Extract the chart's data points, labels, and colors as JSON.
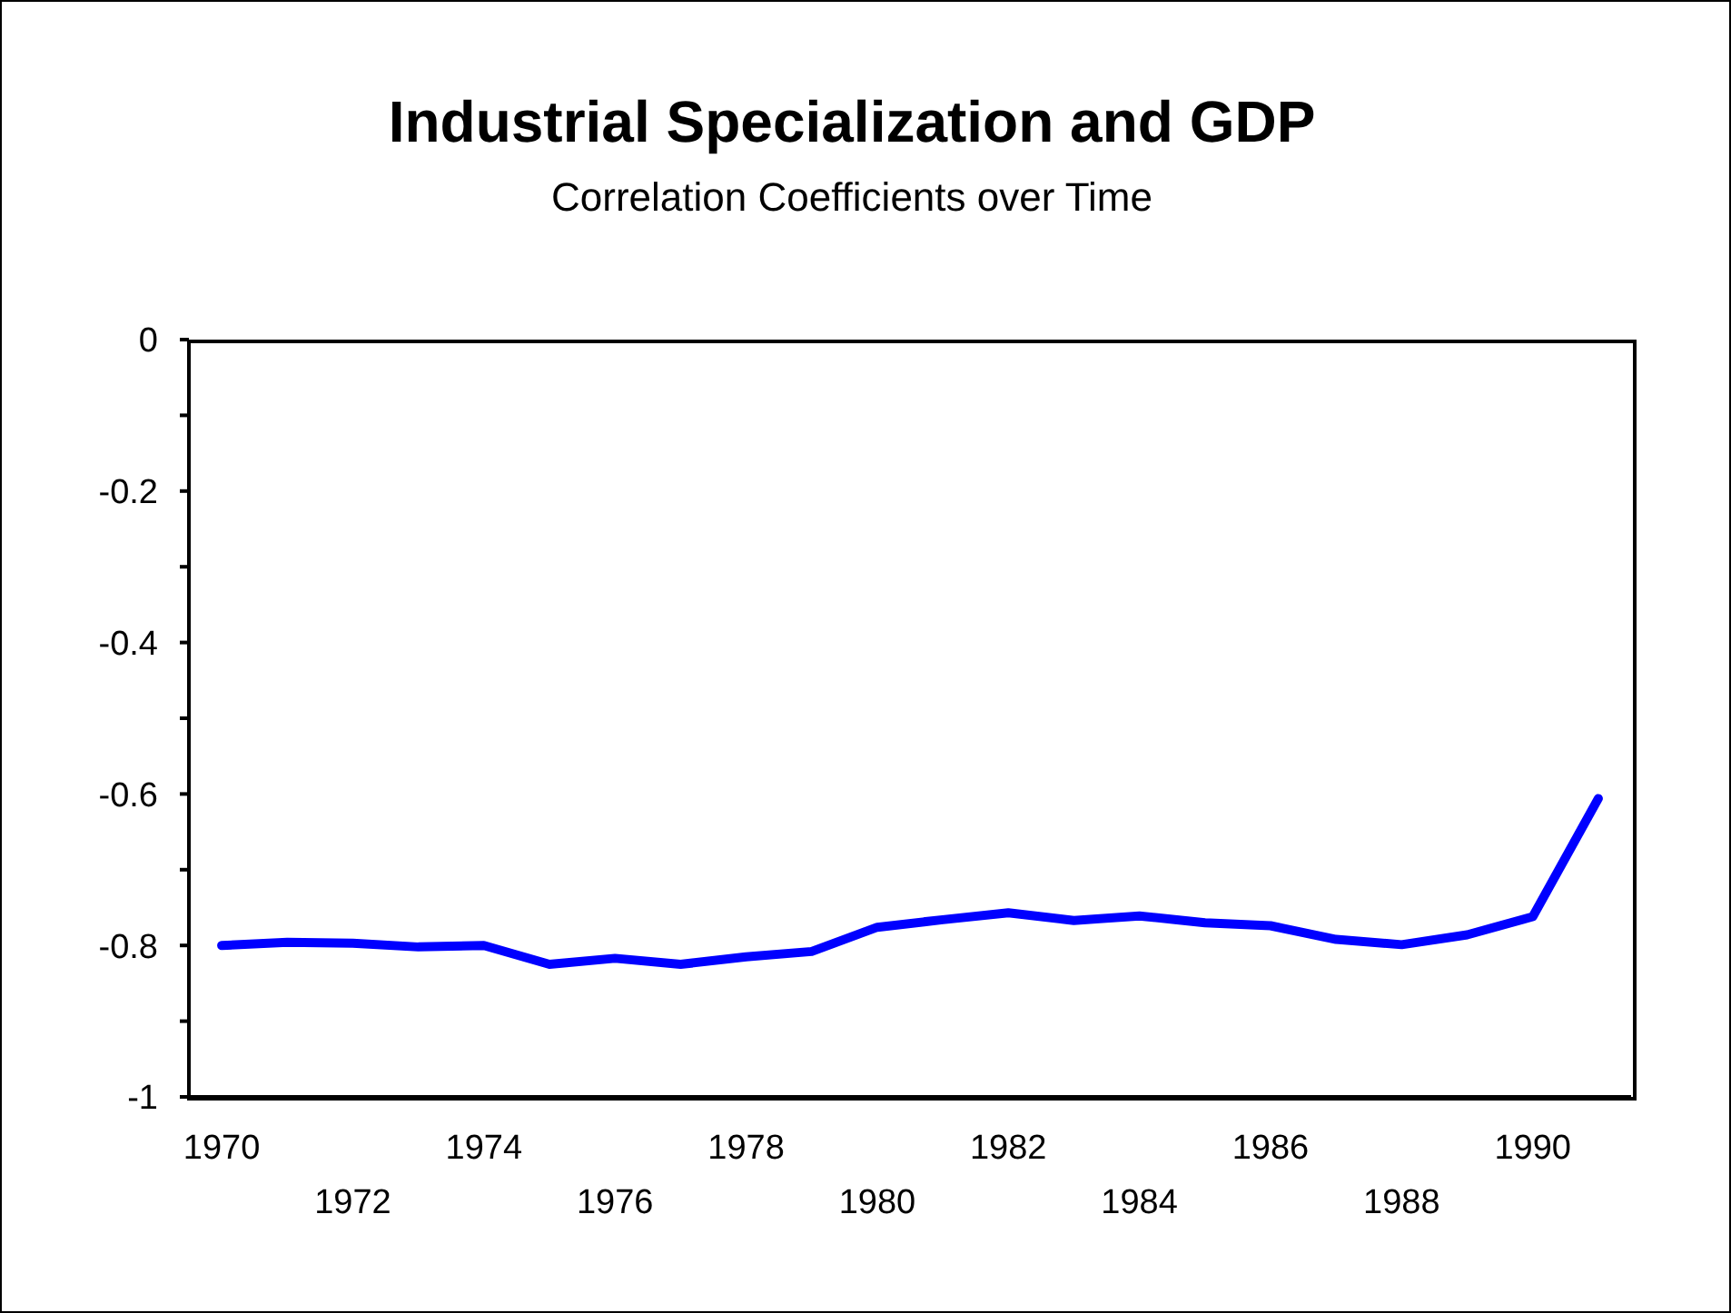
{
  "chart_data": {
    "type": "line",
    "title": "Industrial Specialization and GDP",
    "subtitle": "Correlation Coefficients over Time",
    "categories": [
      "1970",
      null,
      "1972",
      null,
      "1974",
      null,
      "1976",
      null,
      "1978",
      null,
      "1980",
      null,
      "1982",
      null,
      "1984",
      null,
      "1986",
      null,
      "1988",
      null,
      "1990",
      null
    ],
    "series": [
      {
        "color": "#0000ff",
        "values": [
          -0.8,
          -0.796,
          -0.797,
          -0.802,
          -0.8,
          -0.825,
          -0.817,
          -0.825,
          -0.815,
          -0.808,
          -0.776,
          -0.766,
          -0.757,
          -0.767,
          -0.761,
          -0.77,
          -0.774,
          -0.792,
          -0.799,
          -0.786,
          -0.762,
          -0.606
        ]
      }
    ],
    "ylim": [
      -1,
      0
    ],
    "yticks": [
      -1,
      {
        "value": -0.9,
        "label": null
      },
      -0.8,
      {
        "value": -0.7,
        "label": null
      },
      -0.6,
      {
        "value": -0.5,
        "label": null
      },
      -0.4,
      {
        "value": -0.3,
        "label": null
      },
      -0.2,
      {
        "value": -0.1,
        "label": null
      },
      0
    ],
    "marker": "none",
    "line_style": "solid"
  }
}
